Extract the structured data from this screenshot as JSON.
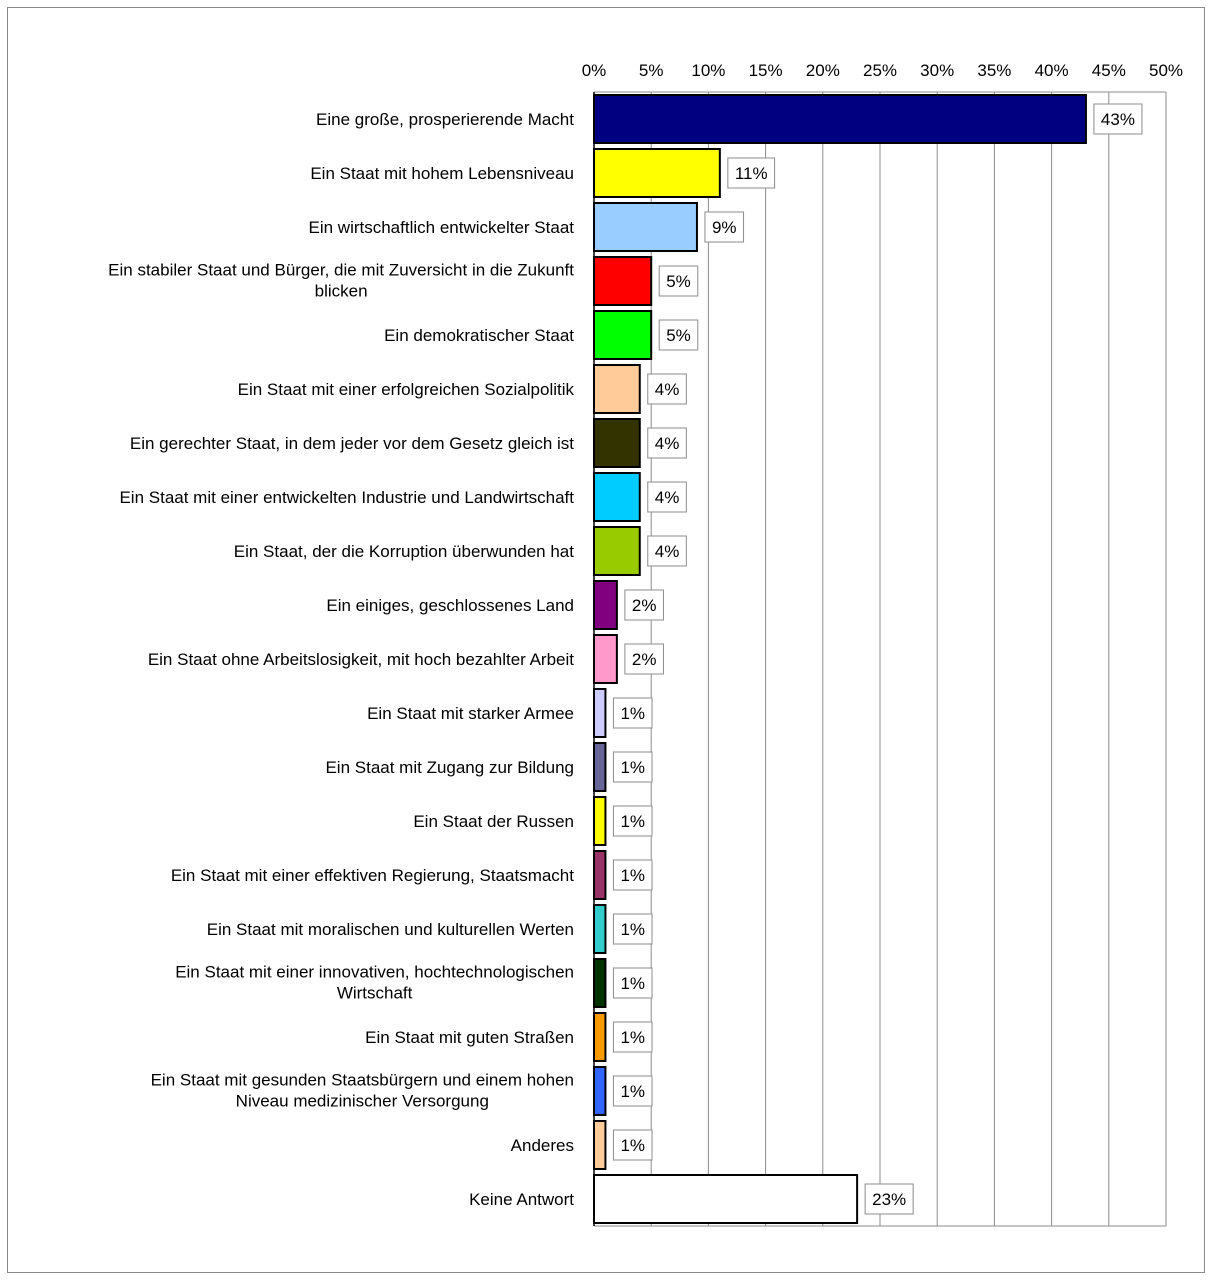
{
  "chart_data": {
    "type": "bar",
    "orientation": "horizontal",
    "title": "",
    "xlabel": "",
    "ylabel": "",
    "xlim": [
      0,
      50
    ],
    "x_ticks": [
      "0%",
      "5%",
      "10%",
      "15%",
      "20%",
      "25%",
      "30%",
      "35%",
      "40%",
      "45%",
      "50%"
    ],
    "grid": true,
    "legend": "none",
    "categories": [
      [
        "Eine große, prosperierende Macht"
      ],
      [
        "Ein Staat mit hohem Lebensniveau"
      ],
      [
        "Ein wirtschaftlich entwickelter Staat"
      ],
      [
        "Ein stabiler Staat und Bürger, die mit Zuversicht in die Zukunft",
        "blicken"
      ],
      [
        "Ein demokratischer Staat"
      ],
      [
        "Ein Staat mit einer erfolgreichen Sozialpolitik"
      ],
      [
        "Ein gerechter Staat, in dem jeder vor dem Gesetz gleich ist"
      ],
      [
        "Ein Staat mit einer entwickelten Industrie und Landwirtschaft"
      ],
      [
        "Ein Staat, der die Korruption überwunden hat"
      ],
      [
        "Ein einiges, geschlossenes Land"
      ],
      [
        "Ein Staat ohne Arbeitslosigkeit, mit hoch bezahlter Arbeit"
      ],
      [
        "Ein Staat mit starker Armee"
      ],
      [
        "Ein Staat mit Zugang zur Bildung"
      ],
      [
        "Ein Staat der Russen"
      ],
      [
        "Ein Staat mit einer effektiven Regierung, Staatsmacht"
      ],
      [
        "Ein Staat mit moralischen und kulturellen Werten"
      ],
      [
        "Ein Staat mit einer innovativen, hochtechnologischen",
        "Wirtschaft"
      ],
      [
        "Ein Staat mit guten Straßen"
      ],
      [
        "Ein Staat mit gesunden Staatsbürgern und einem hohen",
        "Niveau medizinischer Versorgung"
      ],
      [
        "Anderes"
      ],
      [
        "Keine Antwort"
      ]
    ],
    "values": [
      43,
      11,
      9,
      5,
      5,
      4,
      4,
      4,
      4,
      2,
      2,
      1,
      1,
      1,
      1,
      1,
      1,
      1,
      1,
      1,
      23
    ],
    "data_labels": [
      "43%",
      "11%",
      "9%",
      "5%",
      "5%",
      "4%",
      "4%",
      "4%",
      "4%",
      "2%",
      "2%",
      "1%",
      "1%",
      "1%",
      "1%",
      "1%",
      "1%",
      "1%",
      "1%",
      "1%",
      "23%"
    ],
    "colors": [
      "#000080",
      "#FFFF00",
      "#99CCFF",
      "#FF0000",
      "#00FF00",
      "#FFCC99",
      "#333300",
      "#00CCFF",
      "#99CC00",
      "#800080",
      "#FF99CC",
      "#CCCCFF",
      "#666699",
      "#FFFF00",
      "#993366",
      "#33CCCC",
      "#003300",
      "#FF9900",
      "#3366FF",
      "#FFCC99",
      "#FFFFFF"
    ]
  }
}
